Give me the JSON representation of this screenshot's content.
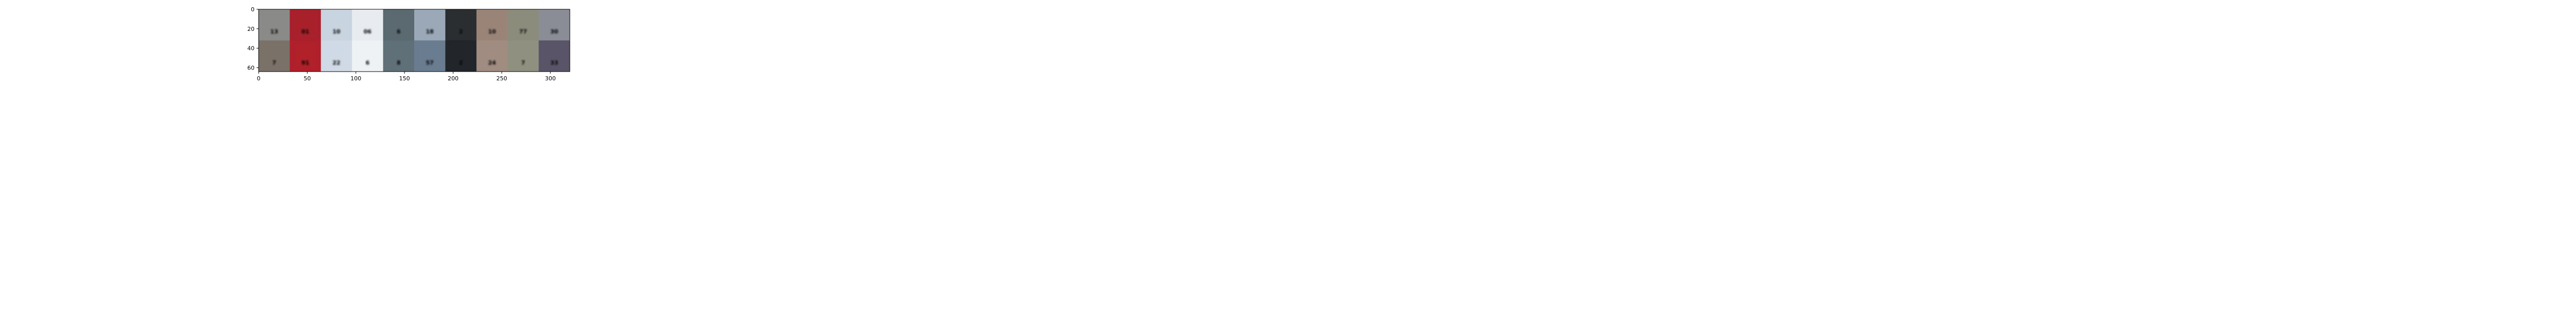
{
  "figure": {
    "type": "image-grid",
    "description_visible": false,
    "x_ticks": [
      {
        "value": 0,
        "label": "0"
      },
      {
        "value": 50,
        "label": "50"
      },
      {
        "value": 100,
        "label": "100"
      },
      {
        "value": 150,
        "label": "150"
      },
      {
        "value": 200,
        "label": "200"
      },
      {
        "value": 250,
        "label": "250"
      },
      {
        "value": 300,
        "label": "300"
      }
    ],
    "y_ticks": [
      {
        "value": 0,
        "label": "0"
      },
      {
        "value": 20,
        "label": "20"
      },
      {
        "value": 40,
        "label": "40"
      },
      {
        "value": 60,
        "label": "60"
      }
    ],
    "x_range": [
      0,
      320
    ],
    "y_range": [
      0,
      64
    ],
    "colors": {
      "axis": "#000000",
      "background": "#ffffff"
    }
  },
  "image_tiles": {
    "columns": 10,
    "rows": 2,
    "tile_width_units": 32,
    "tile_height_units": 32,
    "tiles": [
      {
        "row": 0,
        "col": 0,
        "bg": "#8a8a88",
        "fg": "#4a4a48",
        "glyph": "13"
      },
      {
        "row": 0,
        "col": 1,
        "bg": "#a8202c",
        "fg": "#f0d8dc",
        "glyph": "01"
      },
      {
        "row": 0,
        "col": 2,
        "bg": "#c8d4e0",
        "fg": "#3a4a5a",
        "glyph": "10"
      },
      {
        "row": 0,
        "col": 3,
        "bg": "#e8ecf0",
        "fg": "#b0b4b8",
        "glyph": "06"
      },
      {
        "row": 0,
        "col": 4,
        "bg": "#5a6a70",
        "fg": "#1a1e22",
        "glyph": "6"
      },
      {
        "row": 0,
        "col": 5,
        "bg": "#9aa8b8",
        "fg": "#4a5868",
        "glyph": "18"
      },
      {
        "row": 0,
        "col": 6,
        "bg": "#2a2e30",
        "fg": "#4a5456",
        "glyph": "2"
      },
      {
        "row": 0,
        "col": 7,
        "bg": "#9a8478",
        "fg": "#5a3a30",
        "glyph": "10"
      },
      {
        "row": 0,
        "col": 8,
        "bg": "#8c8c7c",
        "fg": "#3a3a30",
        "glyph": "77"
      },
      {
        "row": 0,
        "col": 9,
        "bg": "#8a8c96",
        "fg": "#e0e2e8",
        "glyph": "30"
      },
      {
        "row": 1,
        "col": 0,
        "bg": "#7a7268",
        "fg": "#201a40",
        "glyph": "7"
      },
      {
        "row": 1,
        "col": 1,
        "bg": "#b0202c",
        "fg": "#f4e0e4",
        "glyph": "91"
      },
      {
        "row": 1,
        "col": 2,
        "bg": "#d0dae6",
        "fg": "#2a2e34",
        "glyph": "22"
      },
      {
        "row": 1,
        "col": 3,
        "bg": "#eef2f4",
        "fg": "#506068",
        "glyph": "6"
      },
      {
        "row": 1,
        "col": 4,
        "bg": "#607078",
        "fg": "#101418",
        "glyph": "8"
      },
      {
        "row": 1,
        "col": 5,
        "bg": "#6a7c90",
        "fg": "#c0ccd8",
        "glyph": "57"
      },
      {
        "row": 1,
        "col": 6,
        "bg": "#22262a",
        "fg": "#6a7478",
        "glyph": "2"
      },
      {
        "row": 1,
        "col": 7,
        "bg": "#a08c80",
        "fg": "#2a1a40",
        "glyph": "24"
      },
      {
        "row": 1,
        "col": 8,
        "bg": "#909080",
        "fg": "#2a2a22",
        "glyph": "7"
      },
      {
        "row": 1,
        "col": 9,
        "bg": "#5a5468",
        "fg": "#e8e8f4",
        "glyph": "33"
      }
    ]
  }
}
